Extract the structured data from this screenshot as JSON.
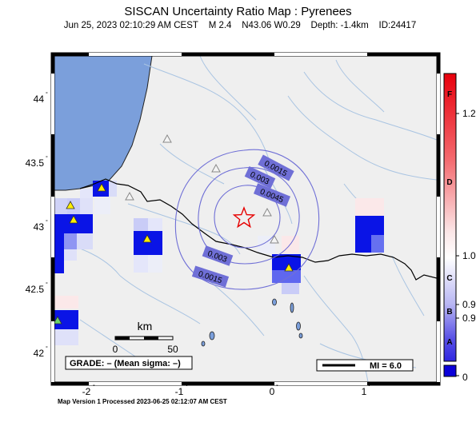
{
  "header": {
    "title": "SISCAN Uncertainty Ratio Map : Pyrenees",
    "date": "Jun 25, 2023 02:10:29 AM CEST",
    "magnitude": "M 2.4",
    "location": "N43.06 W0.29",
    "depth": "Depth: -1.4km",
    "event_id": "ID:24417"
  },
  "map": {
    "lat_labels": [
      "44",
      "43.5",
      "43",
      "42.5",
      "42"
    ],
    "lon_labels": [
      "-2",
      "-1",
      "0",
      "1"
    ],
    "contour_labels": [
      "0.0015",
      "0.003",
      "0.0045",
      "0.003",
      "0.0015"
    ],
    "scale_unit": "km",
    "scale_ticks": [
      "0",
      "50"
    ],
    "grade_text": "GRADE: – (Mean sigma: –)",
    "mi_text": "MI = 6.0",
    "epicenter_icon": "star-icon",
    "station_icon": "triangle-icon"
  },
  "colorbar": {
    "letters": [
      "F",
      "D",
      "C",
      "B",
      "A"
    ],
    "values": [
      "1.2",
      "1.0",
      "0.9",
      "0.9",
      "0"
    ]
  },
  "footer": {
    "text": "Map Version 1 Processed 2023-06-25 02:12:07 AM CEST"
  },
  "colors": {
    "land": "#efefef",
    "sea": "#7b9fdb",
    "river": "#a9c4e2",
    "contour": "#6f6fd6",
    "cell_dark": "#0a14e6",
    "cell_mid": "#6670f0",
    "cell_light": "#c9ccf7",
    "colorbar_high": "#e8000c",
    "colorbar_low": "#0b00d9"
  }
}
